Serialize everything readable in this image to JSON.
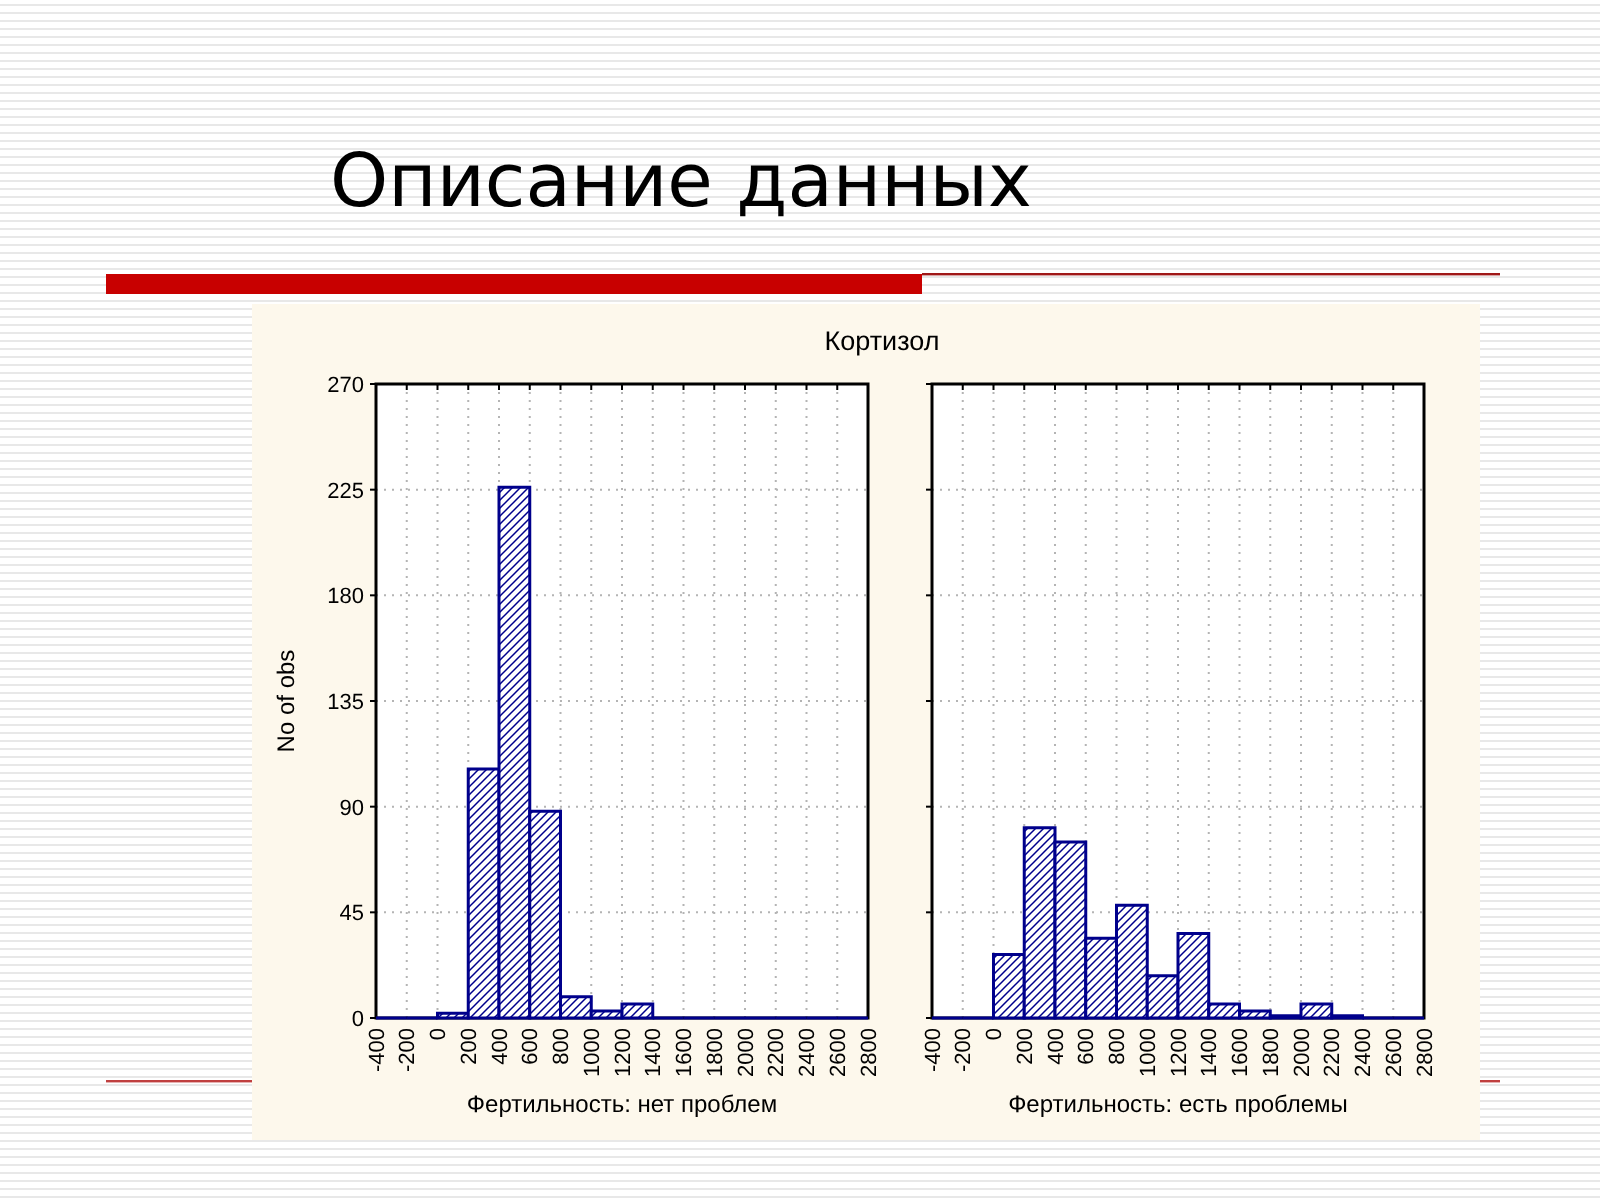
{
  "chart_data": [
    {
      "type": "histogram",
      "title": "Описание данных",
      "subtitle": "Кортизол",
      "xlabel": "Фертильность: нет проблем",
      "ylabel": "No of obs",
      "bins": [
        -400,
        -200,
        0,
        200,
        400,
        600,
        800,
        1000,
        1200,
        1400,
        1600,
        1800,
        2000,
        2200,
        2400,
        2600,
        2800
      ],
      "values": [
        0,
        0,
        2,
        106,
        226,
        88,
        9,
        3,
        6,
        0,
        0,
        0,
        0,
        0,
        0,
        0
      ],
      "color": "#00008c",
      "xlim": [
        -400,
        2800
      ],
      "xticks": [
        -400,
        -200,
        0,
        200,
        400,
        600,
        800,
        1000,
        1200,
        1400,
        1600,
        1800,
        2000,
        2200,
        2400,
        2600,
        2800
      ],
      "ylim": [
        0,
        270
      ],
      "yticks": [
        0,
        45,
        90,
        135,
        180,
        225,
        270
      ],
      "grid": true
    },
    {
      "type": "histogram",
      "xlabel": "Фертильность: есть проблемы",
      "bins": [
        -400,
        -200,
        0,
        200,
        400,
        600,
        800,
        1000,
        1200,
        1400,
        1600,
        1800,
        2000,
        2200,
        2400,
        2600,
        2800
      ],
      "values": [
        0,
        0,
        27,
        81,
        75,
        34,
        48,
        18,
        36,
        6,
        3,
        1,
        6,
        1,
        0,
        0
      ],
      "color": "#00008c",
      "xlim": [
        -400,
        2800
      ],
      "xticks": [
        -400,
        -200,
        0,
        200,
        400,
        600,
        800,
        1000,
        1200,
        1400,
        1600,
        1800,
        2000,
        2200,
        2400,
        2600,
        2800
      ],
      "ylim": [
        0,
        270
      ],
      "yticks": [
        0,
        45,
        90,
        135,
        180,
        225,
        270
      ],
      "grid": true,
      "tick_labels": "x"
    }
  ]
}
